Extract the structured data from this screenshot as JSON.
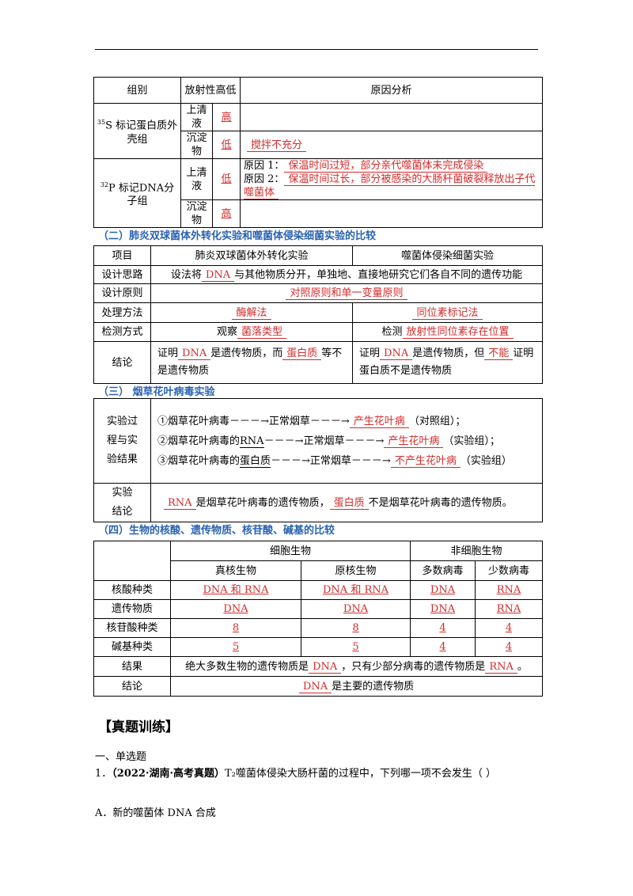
{
  "table1": {
    "header": [
      "组别",
      "放射性高低",
      "原因分析"
    ],
    "groups": [
      {
        "isotope": "35",
        "label": "S 标记蛋白质外壳组",
        "rows": [
          {
            "fraction": "上清液",
            "level": "高"
          },
          {
            "fraction": "沉淀物",
            "level": "低",
            "reasons": [
              [
                {
                  "answer": "搅拌不充分"
                }
              ]
            ]
          }
        ]
      },
      {
        "isotope": "32",
        "label": "P 标记DNA分子组",
        "rows": [
          {
            "fraction": "上清液",
            "level": "低",
            "reasons": [
              [
                {
                  "text": "原因 1："
                },
                {
                  "answer": "保温时间过短，部分亲代噬菌体未完成侵染"
                }
              ],
              [
                {
                  "text": "原因 2："
                },
                {
                  "answer": "保温时间过长，部分被感染的大肠杆菌破裂释放出子代噬菌体"
                }
              ]
            ]
          },
          {
            "fraction": "沉淀物",
            "level": "高"
          }
        ]
      }
    ]
  },
  "section2": {
    "heading": "（二）肺炎双球菌体外转化实验和噬菌体侵染细菌实验的比较",
    "header": [
      "项目",
      "肺炎双球菌体外转化实验",
      "噬菌体侵染细菌实验"
    ],
    "design_idea": {
      "label": "设计思路",
      "content": [
        {
          "text": "设法将"
        },
        {
          "answer": "DNA"
        },
        {
          "text": "与其他物质分开，单独地、直接地研究它们各自不同的遗传功能"
        }
      ]
    },
    "design_principle": {
      "label": "设计原则",
      "content": [
        {
          "answer": "对照原则和单一变量原则"
        }
      ]
    },
    "method": {
      "label": "处理方法",
      "left": [
        {
          "answer": "酶解法"
        }
      ],
      "right": [
        {
          "answer": "同位素标记法"
        }
      ]
    },
    "detection": {
      "label": "检测方式",
      "left": [
        {
          "text": "观察"
        },
        {
          "answer": "菌落类型"
        }
      ],
      "right": [
        {
          "text": "检测"
        },
        {
          "answer": "放射性同位素存在位置"
        }
      ]
    },
    "conclusion": {
      "label": "结论",
      "left": [
        {
          "text": "证明"
        },
        {
          "answer": "DNA"
        },
        {
          "text": "是遗传物质，而"
        },
        {
          "answer": "蛋白质"
        },
        {
          "text": "等不是遗传物质"
        }
      ],
      "right": [
        {
          "text": "证明"
        },
        {
          "answer": "DNA"
        },
        {
          "text": "是遗传物质，但"
        },
        {
          "answer": "不能"
        },
        {
          "text": "证明蛋白质不是遗传物质"
        }
      ]
    }
  },
  "section3": {
    "heading": "（三） 烟草花叶病毒实验",
    "process_label": "实验过程与实验结果",
    "process": [
      [
        {
          "text": "①烟草花叶病毒－－－→正常烟草－－－→"
        },
        {
          "answer": "产生花叶病"
        },
        {
          "text": "（对照组）；"
        }
      ],
      [
        {
          "text": "②烟草花叶病毒的"
        },
        {
          "underline": "RNA"
        },
        {
          "text": "－－－→正常烟草－－－→"
        },
        {
          "answer": "产生花叶病"
        },
        {
          "text": "（实验组）；"
        }
      ],
      [
        {
          "text": "③烟草花叶病毒的"
        },
        {
          "underline": "蛋白质"
        },
        {
          "text": "－－－→正常烟草－－－→"
        },
        {
          "answer": "不产生花叶病"
        },
        {
          "text": "（实验组）"
        }
      ]
    ],
    "conclusion_label": "实验结论",
    "conclusion": [
      {
        "answer": "RNA"
      },
      {
        "text": "是烟草花叶病毒的遗传物质，"
      },
      {
        "answer": "蛋白质"
      },
      {
        "text": "不是烟草花叶病毒的遗传物质。"
      }
    ]
  },
  "section4": {
    "heading": "（四）生物的核酸、遗传物质、核苷酸、碱基的比较",
    "groups": [
      "细胞生物",
      "非细胞生物"
    ],
    "columns": [
      "真核生物",
      "原核生物",
      "多数病毒",
      "少数病毒"
    ],
    "rows": [
      {
        "label": "核酸种类",
        "cells": [
          "DNA 和 RNA",
          "DNA 和 RNA",
          "DNA",
          "RNA"
        ]
      },
      {
        "label": "遗传物质",
        "cells": [
          "DNA",
          "DNA",
          "DNA",
          "RNA"
        ]
      },
      {
        "label": "核苷酸种类",
        "cells": [
          "8",
          "8",
          "4",
          "4"
        ]
      },
      {
        "label": "碱基种类",
        "cells": [
          "5",
          "5",
          "4",
          "4"
        ]
      }
    ],
    "result": {
      "label": "结果",
      "content": [
        {
          "text": "绝大多数生物的遗传物质是"
        },
        {
          "answer": "DNA"
        },
        {
          "text": "，只有少部分病毒的遗传物质是"
        },
        {
          "answer": "RNA"
        },
        {
          "text": "。"
        }
      ]
    },
    "conclusion": {
      "label": "结论",
      "content": [
        {
          "answer": "DNA"
        },
        {
          "text": "是主要的遗传物质"
        }
      ]
    }
  },
  "practice": {
    "title": "【真题训练】",
    "section": "一、单选题",
    "questions": [
      {
        "number": "1．",
        "source": "（2022·湖南·高考真题）",
        "stem": "T₂噬菌体侵染大肠杆菌的过程中，下列哪一项不会发生（ ）",
        "options": [
          "A．新的噬菌体 DNA 合成"
        ]
      }
    ]
  }
}
